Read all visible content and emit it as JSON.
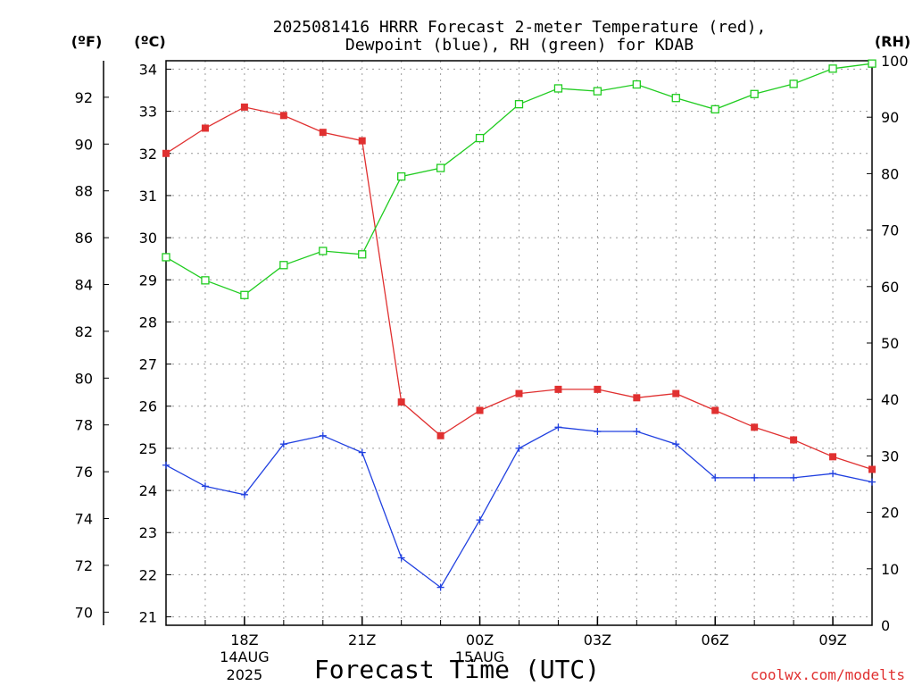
{
  "chart_data": {
    "type": "line",
    "title_line1": "2025081416 HRRR Forecast 2-meter Temperature (red),",
    "title_line2": "Dewpoint (blue), RH (green) for KDAB",
    "units": {
      "fahrenheit": "(ºF)",
      "celsius": "(ºC)",
      "rh": "(RH)"
    },
    "xlabel": "Forecast Time (UTC)",
    "credit": "coolwx.com/modelts",
    "x_ticks": [
      {
        "hour": 18,
        "label": "18Z",
        "sub1": "14AUG",
        "sub2": "2025"
      },
      {
        "hour": 21,
        "label": "21Z",
        "sub1": "",
        "sub2": ""
      },
      {
        "hour": 24,
        "label": "00Z",
        "sub1": "15AUG",
        "sub2": ""
      },
      {
        "hour": 27,
        "label": "03Z",
        "sub1": "",
        "sub2": ""
      },
      {
        "hour": 30,
        "label": "06Z",
        "sub1": "",
        "sub2": ""
      },
      {
        "hour": 33,
        "label": "09Z",
        "sub1": "",
        "sub2": ""
      }
    ],
    "x_hours": [
      16,
      17,
      18,
      19,
      20,
      21,
      22,
      23,
      24,
      25,
      26,
      27,
      28,
      29,
      30,
      31,
      32,
      33,
      34
    ],
    "xlim": [
      16,
      34
    ],
    "celsius_axis": {
      "ylim": [
        20.8,
        34.2
      ],
      "ticks": [
        21,
        22,
        23,
        24,
        25,
        26,
        27,
        28,
        29,
        30,
        31,
        32,
        33,
        34
      ]
    },
    "fahrenheit_axis": {
      "ticks": [
        70,
        72,
        74,
        76,
        78,
        80,
        82,
        84,
        86,
        88,
        90,
        92
      ]
    },
    "rh_axis": {
      "ylim": [
        0,
        100
      ],
      "ticks": [
        0,
        10,
        20,
        30,
        40,
        50,
        60,
        70,
        80,
        90,
        100
      ]
    },
    "series": [
      {
        "name": "Temperature",
        "axis": "celsius",
        "color": "#e03030",
        "marker": "filled-square",
        "values": [
          32.0,
          32.6,
          33.1,
          32.9,
          32.5,
          32.3,
          26.1,
          25.3,
          25.9,
          26.3,
          26.4,
          26.4,
          26.2,
          26.3,
          25.9,
          25.5,
          25.2,
          24.8,
          24.5
        ]
      },
      {
        "name": "Dewpoint",
        "axis": "celsius",
        "color": "#2040e0",
        "marker": "plus",
        "values": [
          24.6,
          24.1,
          23.9,
          25.1,
          25.3,
          24.9,
          22.4,
          21.7,
          23.3,
          25.0,
          25.5,
          25.4,
          25.4,
          25.1,
          24.3,
          24.3,
          24.3,
          24.4,
          24.2
        ]
      },
      {
        "name": "RH",
        "axis": "rh",
        "color": "#20cc20",
        "marker": "open-square",
        "values": [
          65.2,
          61.1,
          58.5,
          63.8,
          66.3,
          65.7,
          79.5,
          81.0,
          86.3,
          92.3,
          95.1,
          94.6,
          95.8,
          93.4,
          91.4,
          94.1,
          95.9,
          98.6,
          99.5
        ]
      }
    ]
  }
}
